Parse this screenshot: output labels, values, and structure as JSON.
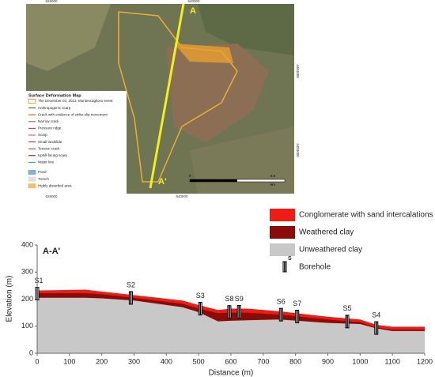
{
  "chart_data": {
    "type": "cross-section",
    "title": "A-A'",
    "x_label": "Distance (m)",
    "y_label": "Elevation (m)",
    "x": [
      0,
      50,
      150,
      200,
      300,
      450,
      500,
      560,
      600,
      650,
      750,
      900,
      1000,
      1050,
      1100,
      1200
    ],
    "series": [
      {
        "name": "Conglomerate with sand intercalations",
        "color": "#ee1c14",
        "values": [
          232,
          233,
          235,
          228,
          215,
          195,
          178,
          160,
          165,
          165,
          155,
          135,
          125,
          105,
          98,
          98
        ]
      },
      {
        "name": "Weathered clay",
        "color": "#8a0c08",
        "values": [
          222,
          222,
          222,
          218,
          205,
          183,
          165,
          148,
          150,
          150,
          143,
          125,
          115,
          95,
          88,
          88
        ]
      },
      {
        "name": "Unweathered clay",
        "color": "#c8c8c8",
        "values": [
          205,
          205,
          205,
          203,
          195,
          170,
          152,
          118,
          120,
          122,
          125,
          112,
          108,
          92,
          82,
          82
        ]
      }
    ],
    "borehole_legend": {
      "symbol": "S",
      "label": "Borehole"
    },
    "boreholes": [
      {
        "label": "S1",
        "x": 0
      },
      {
        "label": "S2",
        "x": 290
      },
      {
        "label": "S3",
        "x": 505
      },
      {
        "label": "S8",
        "x": 595
      },
      {
        "label": "S9",
        "x": 625
      },
      {
        "label": "S6",
        "x": 755
      },
      {
        "label": "S7",
        "x": 805
      },
      {
        "label": "S5",
        "x": 960
      },
      {
        "label": "S4",
        "x": 1050
      }
    ],
    "xlim": [
      0,
      1200
    ],
    "xticks": [
      0,
      100,
      200,
      300,
      400,
      500,
      600,
      700,
      800,
      900,
      1000,
      1100,
      1200
    ],
    "ylim": [
      0,
      400
    ],
    "yticks": [
      0,
      100,
      200,
      300,
      400
    ]
  },
  "map": {
    "section_start": "A",
    "section_end": "A'",
    "top_coords": [
      "626000",
      "640000"
    ],
    "bottom_coords": [
      "626000",
      "640000"
    ],
    "side_coords": [
      "4484000",
      "4483000"
    ],
    "legend_title": "Surface Deformation Map",
    "legend_items": [
      "The December 03, 2013, Montescaglioso event",
      "Anthropogenic scarp",
      "Crack with evidence of strike-slip movement",
      "Narrow crack",
      "Pressure ridge",
      "Scarp",
      "Small landslide",
      "Tension crack",
      "Uphill-facing scarp",
      "Water line",
      "Pond",
      "Trench",
      "Highly disturbed area"
    ],
    "scale": [
      "0",
      "0.5",
      "km"
    ]
  }
}
